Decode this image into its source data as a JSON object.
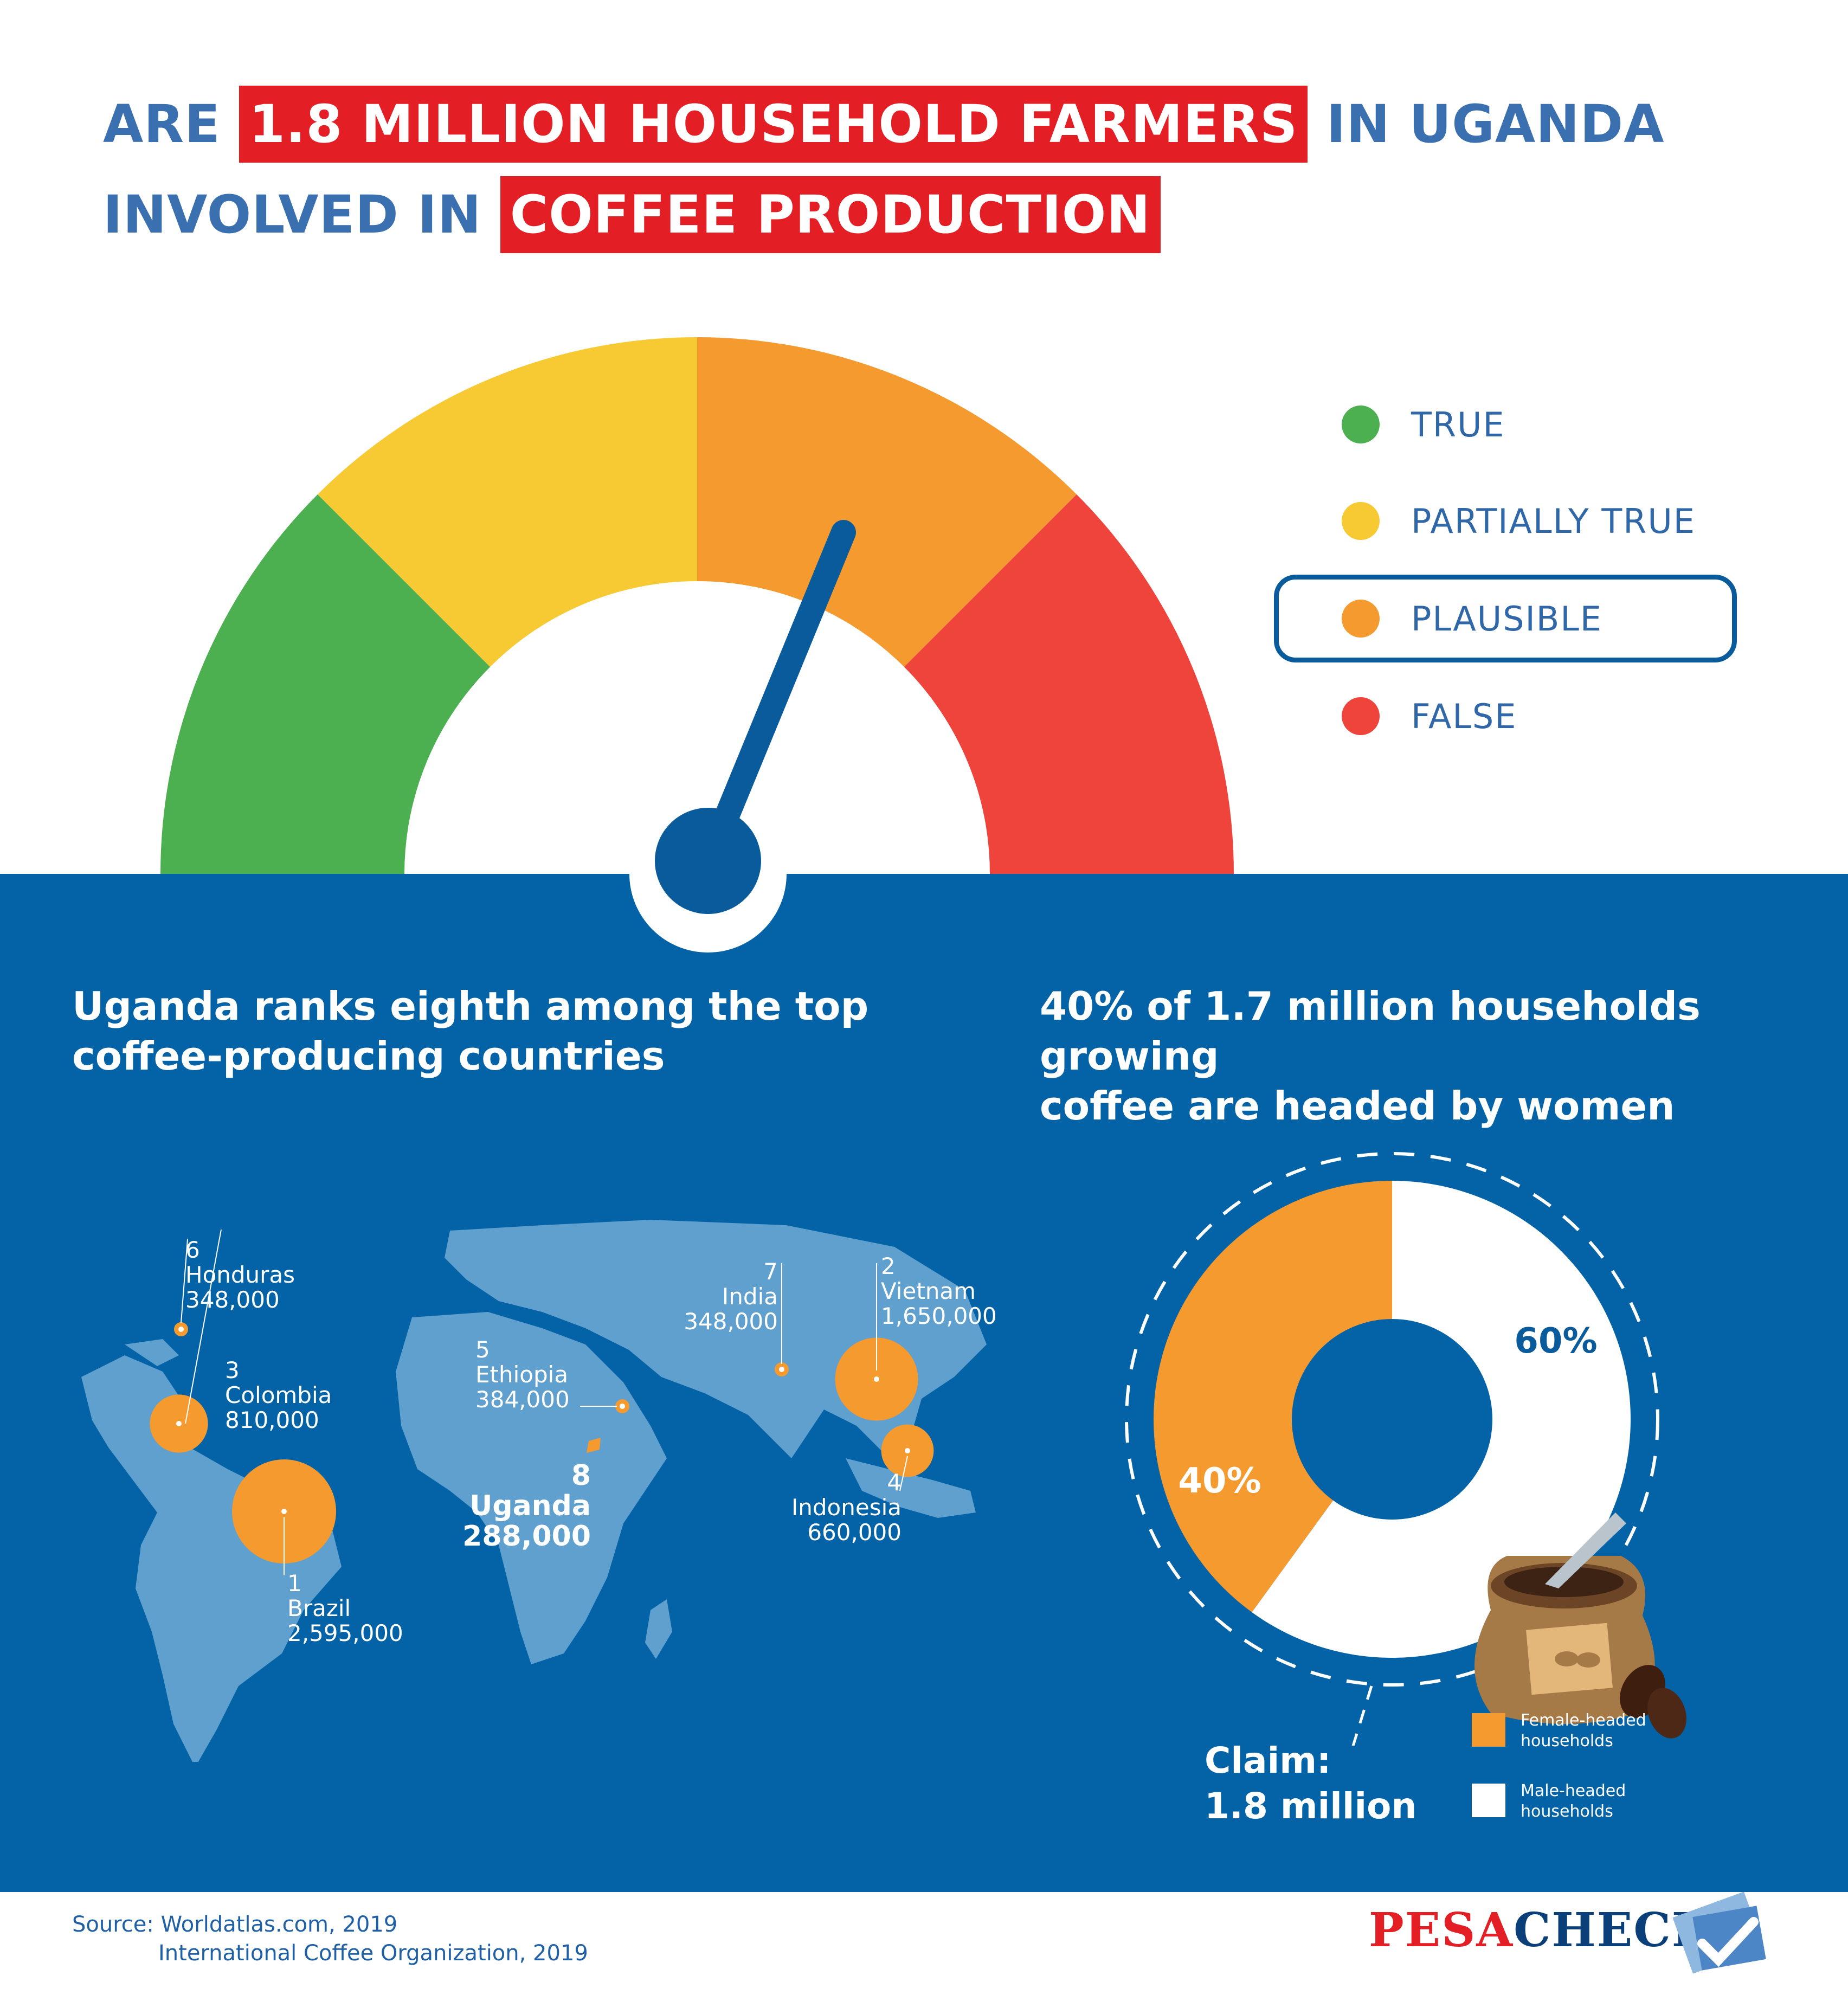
{
  "headline": {
    "part1": "ARE",
    "highlight1": "1.8 MILLION HOUSEHOLD FARMERS",
    "part2": "IN UGANDA",
    "part3": "INVOLVED IN",
    "highlight2": "COFFEE PRODUCTION"
  },
  "verdict_legend": [
    {
      "label": "TRUE",
      "color": "#4caf50"
    },
    {
      "label": "PARTIALLY TRUE",
      "color": "#f7ca33"
    },
    {
      "label": "PLAUSIBLE",
      "color": "#f49a2e",
      "selected": true
    },
    {
      "label": "FALSE",
      "color": "#ef443b"
    }
  ],
  "gauge": {
    "selected": "PLAUSIBLE",
    "colors": [
      "#4caf50",
      "#f7ca33",
      "#f49a2e",
      "#ef443b"
    ]
  },
  "left_panel": {
    "subtitle_line1": "Uganda ranks eighth among the top",
    "subtitle_line2": "coffee-producing countries"
  },
  "right_panel": {
    "subtitle_line1": "40% of 1.7 million households growing",
    "subtitle_line2": "coffee are headed by women",
    "claim_line1": "Claim:",
    "claim_line2": "1.8 million"
  },
  "chart_data": [
    {
      "type": "bubble-map",
      "series": [
        {
          "rank": "6",
          "country": "Honduras",
          "value_label": "348,000",
          "value": 348000
        },
        {
          "rank": "3",
          "country": "Colombia",
          "value_label": "810,000",
          "value": 810000
        },
        {
          "rank": "1",
          "country": "Brazil",
          "value_label": "2,595,000",
          "value": 2595000
        },
        {
          "rank": "5",
          "country": "Ethiopia",
          "value_label": "384,000",
          "value": 384000
        },
        {
          "rank": "8",
          "country": "Uganda",
          "value_label": "288,000",
          "value": 288000
        },
        {
          "rank": "7",
          "country": "India",
          "value_label": "348,000",
          "value": 348000
        },
        {
          "rank": "2",
          "country": "Vietnam",
          "value_label": "1,650,000",
          "value": 1650000
        },
        {
          "rank": "4",
          "country": "Indonesia",
          "value_label": "660,000",
          "value": 660000
        }
      ]
    },
    {
      "type": "pie",
      "categories": [
        "Female-headed households",
        "Male-headed households"
      ],
      "values": [
        40,
        60
      ],
      "labels": [
        "40%",
        "60%"
      ],
      "colors": [
        "#f49a2e",
        "#ffffff"
      ]
    }
  ],
  "footer": {
    "source_line1": "Source: Worldatlas.com, 2019",
    "source_line2": "International Coffee Organization, 2019",
    "logo_part1": "PESA",
    "logo_part2": "CHECK"
  }
}
